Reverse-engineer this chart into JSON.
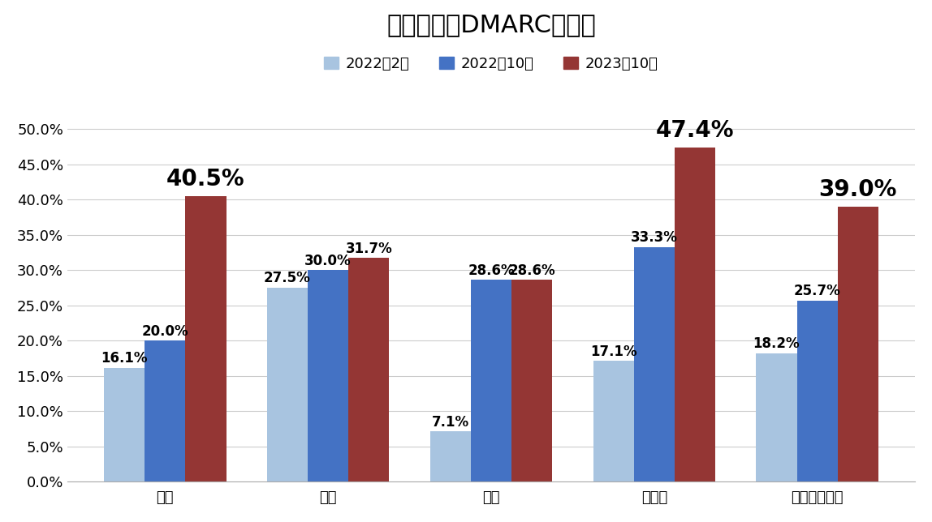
{
  "title": "金融機関のDMARC導入率",
  "categories": [
    "銀行",
    "証券",
    "保険",
    "その他",
    "金融機関全体"
  ],
  "series": [
    {
      "label": "2022年2月",
      "values": [
        16.1,
        27.5,
        7.1,
        17.1,
        18.2
      ],
      "color": "#a8c4e0"
    },
    {
      "label": "2022年10月",
      "values": [
        20.0,
        30.0,
        28.6,
        33.3,
        25.7
      ],
      "color": "#4472c4"
    },
    {
      "label": "2023年10月",
      "values": [
        40.5,
        31.7,
        28.6,
        47.4,
        39.0
      ],
      "color": "#943634"
    }
  ],
  "ylim": [
    0,
    55
  ],
  "yticks": [
    0.0,
    5.0,
    10.0,
    15.0,
    20.0,
    25.0,
    30.0,
    35.0,
    40.0,
    45.0,
    50.0
  ],
  "ylabel": "",
  "xlabel": "",
  "background_color": "#ffffff",
  "grid_color": "#cccccc",
  "title_fontsize": 22,
  "label_fontsize": 13,
  "tick_fontsize": 13,
  "legend_fontsize": 13,
  "bar_label_fontsize_small": 12,
  "bar_label_fontsize_large": 20,
  "large_label_threshold": 35.0
}
